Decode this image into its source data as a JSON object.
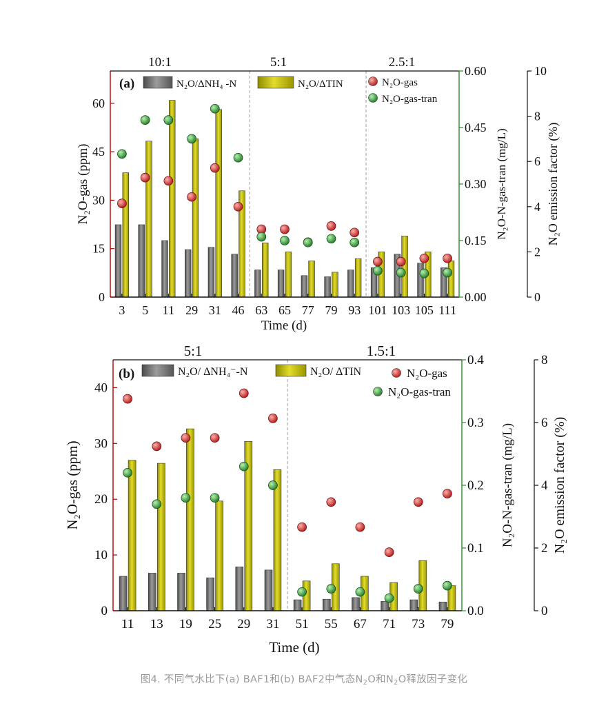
{
  "caption": {
    "prefix": "图4. 不同气水比下(a) BAF1和(b) BAF2中气态N",
    "mid": "O和N",
    "suffix": "O释放因子变化",
    "sub": "2"
  },
  "colors": {
    "nh4_bar": "#6e6e6e",
    "tin_bar": "#c8c400",
    "n2o_gas": "#b0181b",
    "n2o_gas_tran": "#1f7a25",
    "divider": "#9a9a9a",
    "left_axis": "#b00000",
    "mid_axis": "#2a8a2a"
  },
  "chart_data": [
    {
      "type": "bar",
      "panel_label": "(a)",
      "phases": [
        "10:1",
        "5:1",
        "2.5:1"
      ],
      "categories": [
        "3",
        "5",
        "11",
        "29",
        "31",
        "46",
        "63",
        "65",
        "77",
        "79",
        "93",
        "101",
        "103",
        "105",
        "111"
      ],
      "xlabel": "Time (d)",
      "ylabel": "N₂O-gas (ppm)",
      "ylim": [
        0,
        70
      ],
      "yticks": [
        "0",
        "15",
        "30",
        "45",
        "60"
      ],
      "y2label": "N₂O-N-gas-tran (mg/L)",
      "y2lim": [
        0,
        0.6
      ],
      "y2ticks": [
        "0.00",
        "0.15",
        "0.30",
        "0.45",
        "0.60"
      ],
      "y3label": "N₂O emission factor (%)",
      "y3lim": [
        0,
        10
      ],
      "y3ticks": [
        "0",
        "2",
        "4",
        "6",
        "8",
        "10"
      ],
      "legend": [
        "N₂O/ΔNH₄ -N",
        "N₂O/ΔTIN",
        "N₂O-gas",
        "N₂O-gas-tran"
      ],
      "series": [
        {
          "name": "N₂O/ΔNH₄ -N",
          "axis": "y3",
          "kind": "bar",
          "values": [
            3.2,
            3.2,
            2.5,
            2.1,
            2.2,
            1.9,
            1.2,
            1.2,
            0.95,
            0.9,
            1.2,
            1.3,
            1.9,
            1.5,
            1.3
          ]
        },
        {
          "name": "N₂O/ΔTIN",
          "axis": "y3",
          "kind": "bar",
          "values": [
            5.5,
            6.9,
            8.7,
            7.0,
            8.3,
            4.7,
            2.4,
            2.0,
            1.6,
            1.1,
            1.7,
            2.0,
            2.7,
            2.0,
            1.6
          ]
        },
        {
          "name": "N₂O-gas",
          "axis": "y",
          "kind": "scatter",
          "values": [
            29,
            37,
            36,
            31,
            40,
            28,
            21,
            21,
            17,
            22,
            20,
            11,
            11,
            12,
            12
          ]
        },
        {
          "name": "N₂O-gas-tran",
          "axis": "y2",
          "kind": "scatter",
          "values": [
            0.38,
            0.47,
            0.47,
            0.42,
            0.5,
            0.37,
            0.16,
            0.15,
            0.145,
            0.155,
            0.145,
            0.07,
            0.065,
            0.063,
            0.065
          ]
        }
      ]
    },
    {
      "type": "bar",
      "panel_label": "(b)",
      "phases": [
        "5:1",
        "1.5:1"
      ],
      "categories": [
        "11",
        "13",
        "19",
        "25",
        "29",
        "31",
        "51",
        "55",
        "67",
        "71",
        "73",
        "79"
      ],
      "xlabel": "Time (d)",
      "ylabel": "N₂O-gas (ppm)",
      "ylim": [
        0,
        45
      ],
      "yticks": [
        "0",
        "10",
        "20",
        "30",
        "40"
      ],
      "y2label": "N₂O-N-gas-tran (mg/L)",
      "y2lim": [
        0,
        0.4
      ],
      "y2ticks": [
        "0.0",
        "0.1",
        "0.2",
        "0.3",
        "0.4"
      ],
      "y3label": "N₂O emission factor (%)",
      "y3lim": [
        0,
        8
      ],
      "y3ticks": [
        "0",
        "2",
        "4",
        "6",
        "8"
      ],
      "legend": [
        "N₂O/ ΔNH₄⁻-N",
        "N₂O/ ΔTIN",
        "N₂O-gas",
        "N₂O-gas-tran"
      ],
      "series": [
        {
          "name": "N₂O/ ΔNH₄⁻-N",
          "axis": "y3",
          "kind": "bar",
          "values": [
            1.1,
            1.2,
            1.2,
            1.05,
            1.4,
            1.3,
            0.35,
            0.37,
            0.42,
            0.3,
            0.35,
            0.28
          ]
        },
        {
          "name": "N₂O/ ΔTIN",
          "axis": "y3",
          "kind": "bar",
          "values": [
            4.8,
            4.7,
            5.8,
            3.5,
            5.4,
            4.5,
            0.95,
            1.5,
            1.1,
            0.9,
            1.6,
            0.8
          ]
        },
        {
          "name": "N₂O-gas",
          "axis": "y",
          "kind": "scatter",
          "values": [
            38,
            29.5,
            31,
            31,
            39,
            34.5,
            15,
            19.5,
            15,
            10.5,
            19.5,
            21
          ]
        },
        {
          "name": "N₂O-gas-tran",
          "axis": "y2",
          "kind": "scatter",
          "values": [
            0.22,
            0.17,
            0.18,
            0.18,
            0.23,
            0.2,
            0.03,
            0.035,
            0.03,
            0.02,
            0.035,
            0.04
          ]
        }
      ]
    }
  ]
}
